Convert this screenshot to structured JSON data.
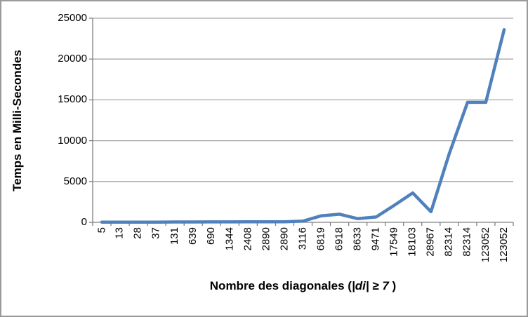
{
  "window": {
    "background": "#ffffff",
    "border_color": "#9a9a9a"
  },
  "chart_data": {
    "type": "line",
    "title": "",
    "categories": [
      "5",
      "13",
      "28",
      "37",
      "131",
      "639",
      "690",
      "1344",
      "2408",
      "2890",
      "2890",
      "3116",
      "6819",
      "6918",
      "8633",
      "9471",
      "17549",
      "18103",
      "28967",
      "82314",
      "82314",
      "123052",
      "123052"
    ],
    "series": [
      {
        "name": "Temps",
        "color": "#4F81BD",
        "values": [
          30,
          30,
          30,
          30,
          40,
          45,
          50,
          55,
          60,
          65,
          70,
          150,
          800,
          1000,
          450,
          650,
          2100,
          3600,
          1300,
          8400,
          14700,
          14700,
          23600
        ]
      }
    ],
    "xlabel": "Nombre des diagonales (|di| ≥ 7 )",
    "xlabel_parts": {
      "prefix": "Nombre des diagonales (",
      "math": "|di| ≥ 7",
      "suffix": " )"
    },
    "ylabel": "Temps en Milli-Secondes",
    "ylim": [
      0,
      25000
    ],
    "ytick_step": 5000,
    "yticks": [
      "0",
      "5000",
      "10000",
      "15000",
      "20000",
      "25000"
    ],
    "grid": "horizontal",
    "legend": "none",
    "gridline_color": "#A6A6A6",
    "axis_color": "#808080",
    "tick_label_color": "#000000"
  }
}
